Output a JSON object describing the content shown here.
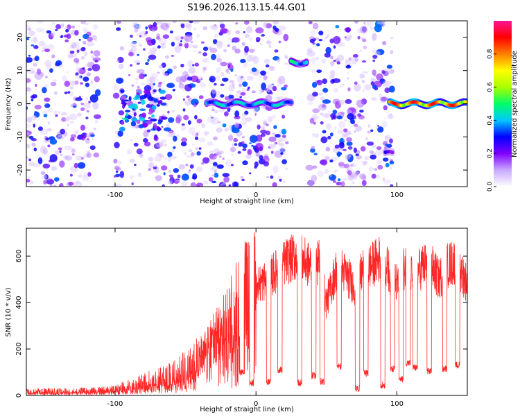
{
  "title": "S196.2026.113.15.44.G01",
  "chart_data": [
    {
      "type": "heatmap",
      "title": "S196.2026.113.15.44.G01",
      "xlabel": "Height of straight line (km)",
      "ylabel": "Frequency (Hz)",
      "xlim": [
        -163,
        150
      ],
      "ylim": [
        -25,
        25
      ],
      "xticks": [
        -100,
        0,
        100
      ],
      "yticks": [
        -20,
        -10,
        0,
        10,
        20
      ],
      "colorbar": {
        "label": "Normalized spectral amplitude",
        "range": [
          0,
          1
        ],
        "ticks": [
          "0.0",
          "0.2",
          "0.4",
          "0.6",
          "0.8"
        ],
        "colors": [
          "#ffffff",
          "#c9a8ff",
          "#7f00ff",
          "#0000ff",
          "#00c8ff",
          "#00ff66",
          "#aaff00",
          "#ffff00",
          "#ff7f00",
          "#ff0000",
          "#ff1493"
        ]
      },
      "noise_columns_km": [
        [
          -163,
          -112
        ],
        [
          -100,
          -95
        ],
        [
          -90,
          -50
        ],
        [
          -50,
          -35
        ],
        [
          -33,
          22
        ],
        [
          38,
          97
        ]
      ],
      "features": [
        {
          "name": "blob cluster",
          "x_range": [
            -95,
            -65
          ],
          "freq_range": [
            -8,
            4
          ],
          "amplitude": 0.35
        },
        {
          "name": "tone near 0 Hz",
          "x_range": [
            -35,
            25
          ],
          "freq": 0,
          "amplitude": 0.45
        },
        {
          "name": "tone at 12 Hz",
          "x_range": [
            25,
            37
          ],
          "freq": 12.5,
          "amplitude": 0.5
        },
        {
          "name": "blob at -15 Hz",
          "x_range": [
            92,
            97
          ],
          "freq": -15,
          "amplitude": 0.3
        },
        {
          "name": "strong tone near 0 Hz",
          "x_range": [
            95,
            150
          ],
          "freq": 0,
          "amplitude": 0.9
        }
      ]
    },
    {
      "type": "line",
      "xlabel": "Height of straight line (km)",
      "ylabel": "SNR (10 * v/v)",
      "xlim": [
        -163,
        150
      ],
      "ylim": [
        0,
        720
      ],
      "xticks": [
        -100,
        0,
        100
      ],
      "yticks": [
        0,
        200,
        400,
        600
      ],
      "color": "#ff0000",
      "series": [
        {
          "name": "SNR",
          "x": [
            -163,
            -140,
            -120,
            -100,
            -80,
            -60,
            -45,
            -35,
            -25,
            -15,
            -8,
            0,
            8,
            15,
            22,
            30,
            38,
            45,
            50,
            58,
            64,
            70,
            76,
            82,
            88,
            94,
            100,
            106,
            112,
            118,
            124,
            130,
            136,
            142,
            150
          ],
          "values": [
            18,
            20,
            22,
            28,
            60,
            90,
            140,
            190,
            270,
            360,
            430,
            470,
            500,
            540,
            580,
            600,
            560,
            580,
            400,
            560,
            520,
            470,
            540,
            560,
            590,
            540,
            480,
            560,
            500,
            560,
            560,
            500,
            560,
            580,
            480
          ]
        }
      ],
      "dips": [
        {
          "x": -10,
          "value": 100
        },
        {
          "x": -3,
          "value": 55
        },
        {
          "x": 9,
          "value": 60
        },
        {
          "x": 17,
          "value": 110
        },
        {
          "x": 31,
          "value": 55
        },
        {
          "x": 41,
          "value": 85
        },
        {
          "x": 47,
          "value": 60
        },
        {
          "x": 59,
          "value": 125
        },
        {
          "x": 72,
          "value": 30
        },
        {
          "x": 78,
          "value": 95
        },
        {
          "x": 90,
          "value": 45
        },
        {
          "x": 97,
          "value": 115
        },
        {
          "x": 103,
          "value": 70
        },
        {
          "x": 108,
          "value": 140
        },
        {
          "x": 113,
          "value": 120
        },
        {
          "x": 123,
          "value": 105
        },
        {
          "x": 134,
          "value": 115
        },
        {
          "x": 143,
          "value": 130
        }
      ]
    }
  ]
}
